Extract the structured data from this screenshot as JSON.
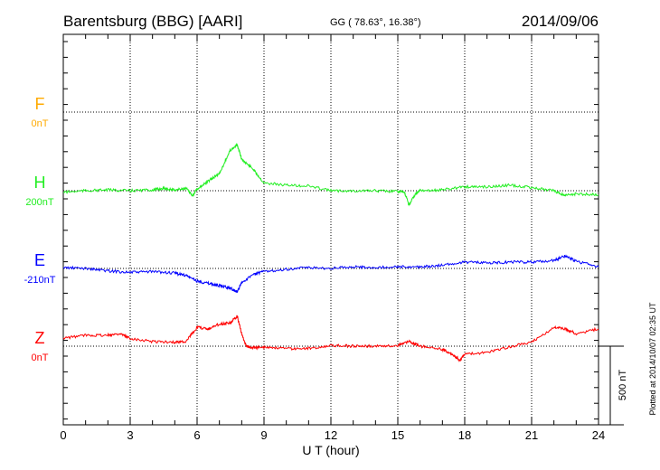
{
  "chart_data": {
    "type": "line",
    "title": "Barentsburg (BBG)  [AARI]",
    "subtitle": "GG ( 78.63°,  16.38°)",
    "date": "2014/09/06",
    "xlabel": "U T (hour)",
    "xlim": [
      0,
      24
    ],
    "xticks": [
      "0",
      "3",
      "6",
      "9",
      "12",
      "15",
      "18",
      "21",
      "24"
    ],
    "scale_label": "500 nT",
    "scale_nT": 500,
    "footer": "Plotted at 2014/10/07 02:35 UT",
    "series": [
      {
        "name": "F",
        "baseline_label": "0nT",
        "color": "#ffaa00",
        "x": [],
        "y": []
      },
      {
        "name": "H",
        "baseline_label": "200nT",
        "color": "#22ee22",
        "x": [
          0,
          1,
          2,
          3,
          4,
          4.5,
          5,
          5.5,
          5.8,
          6,
          6.5,
          7,
          7.5,
          7.8,
          8,
          8.5,
          9,
          10,
          11,
          12,
          13,
          14,
          15,
          15.3,
          15.5,
          15.8,
          16,
          17,
          18,
          19,
          20,
          21,
          22,
          22.5,
          23,
          24
        ],
        "y": [
          -10,
          0,
          5,
          0,
          5,
          15,
          5,
          15,
          -30,
          10,
          60,
          110,
          260,
          290,
          200,
          140,
          50,
          35,
          30,
          0,
          0,
          0,
          -5,
          -10,
          -90,
          -20,
          0,
          5,
          25,
          25,
          35,
          20,
          0,
          -30,
          -20,
          -25
        ]
      },
      {
        "name": "E",
        "baseline_label": "-210nT",
        "color": "#0000ff",
        "x": [
          0,
          1,
          2,
          3,
          4,
          5,
          5.5,
          6,
          6.5,
          7,
          7.5,
          7.8,
          8,
          8.5,
          9,
          10,
          11,
          12,
          13,
          14,
          15,
          16,
          17,
          18,
          19,
          20,
          21,
          22,
          22.5,
          23,
          24
        ],
        "y": [
          5,
          0,
          -15,
          -25,
          -20,
          -30,
          -45,
          -80,
          -95,
          -110,
          -125,
          -150,
          -90,
          -40,
          -20,
          -5,
          5,
          0,
          10,
          5,
          10,
          10,
          20,
          40,
          35,
          40,
          40,
          50,
          80,
          45,
          10
        ]
      },
      {
        "name": "Z",
        "baseline_label": "0nT",
        "color": "#ff0000",
        "x": [
          0,
          1,
          2,
          2.5,
          3,
          4,
          5,
          5.5,
          6,
          6.5,
          7,
          7.5,
          7.8,
          8,
          8.2,
          8.5,
          9,
          10,
          11,
          12,
          13,
          14,
          15,
          15.5,
          16,
          17,
          17.5,
          17.8,
          18,
          19,
          20,
          21,
          22,
          22.5,
          23,
          24
        ],
        "y": [
          50,
          70,
          70,
          80,
          50,
          30,
          25,
          30,
          120,
          110,
          140,
          150,
          190,
          80,
          0,
          -10,
          -5,
          -15,
          -15,
          5,
          0,
          0,
          5,
          30,
          0,
          -20,
          -60,
          -90,
          -50,
          -40,
          -5,
          25,
          120,
          110,
          80,
          110
        ]
      }
    ]
  }
}
